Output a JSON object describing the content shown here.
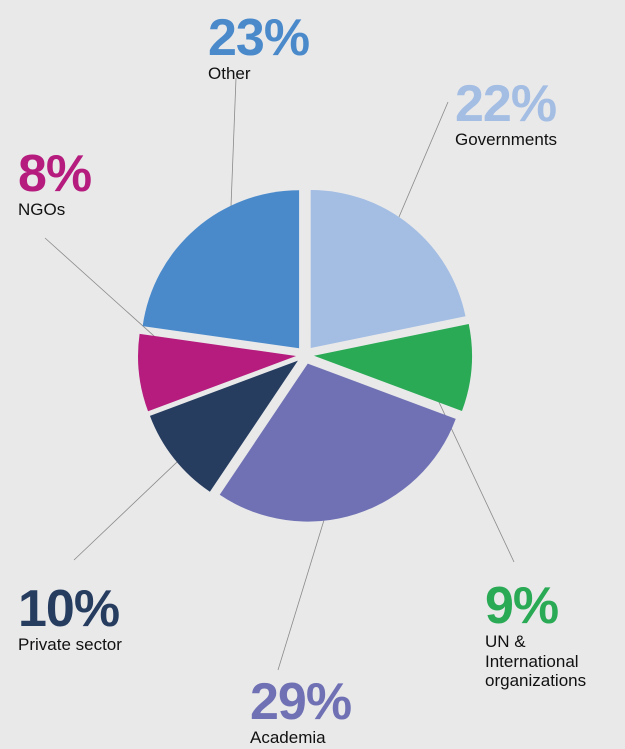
{
  "chart_data": {
    "type": "pie",
    "title": "",
    "slices": [
      {
        "label": "Governments",
        "value": 22,
        "display": "22%",
        "color": "#a3bde3"
      },
      {
        "label": "UN & International organizations",
        "label_lines": [
          "UN &",
          "International",
          "organizations"
        ],
        "value": 9,
        "display": "9%",
        "color": "#2aaa55"
      },
      {
        "label": "Academia",
        "value": 29,
        "display": "29%",
        "color": "#6f71b4"
      },
      {
        "label": "Private sector",
        "value": 10,
        "display": "10%",
        "color": "#263d60"
      },
      {
        "label": "NGOs",
        "value": 8,
        "display": "8%",
        "color": "#b51c7d"
      },
      {
        "label": "Other",
        "value": 23,
        "display": "23%",
        "color": "#4a8acb"
      }
    ],
    "legend": "none"
  }
}
